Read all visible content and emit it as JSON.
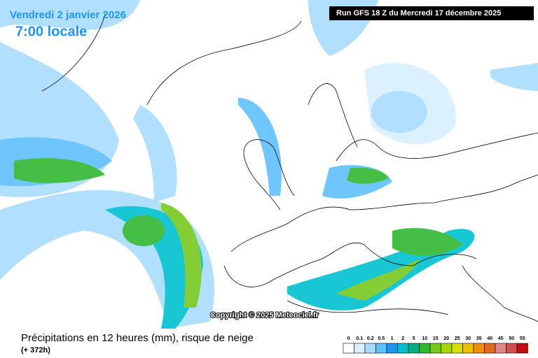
{
  "header": {
    "date": "Vendredi 2 janvier 2026",
    "time": "7:00 locale",
    "run": "Run GFS 18 Z du Mercredi 17 décembre 2025"
  },
  "copyright": "Copyright © 2025 Meteociel.fr",
  "footer": {
    "title": "Précipitations en 12 heures (mm), risque de neige",
    "subtitle": "(+ 372h)"
  },
  "legend": {
    "labels": [
      0,
      0.1,
      0.2,
      0.5,
      1,
      2,
      5,
      10,
      15,
      20,
      25,
      30,
      35,
      40,
      45,
      50,
      55
    ],
    "colors": [
      "#ffffff",
      "#d8f0ff",
      "#a8dcff",
      "#60c0ff",
      "#1e96f0",
      "#00c0d0",
      "#00b080",
      "#30b830",
      "#78c820",
      "#a8d800",
      "#d8e000",
      "#f0c000",
      "#f09000",
      "#e06820",
      "#e08888",
      "#d05050",
      "#c01010"
    ]
  }
}
